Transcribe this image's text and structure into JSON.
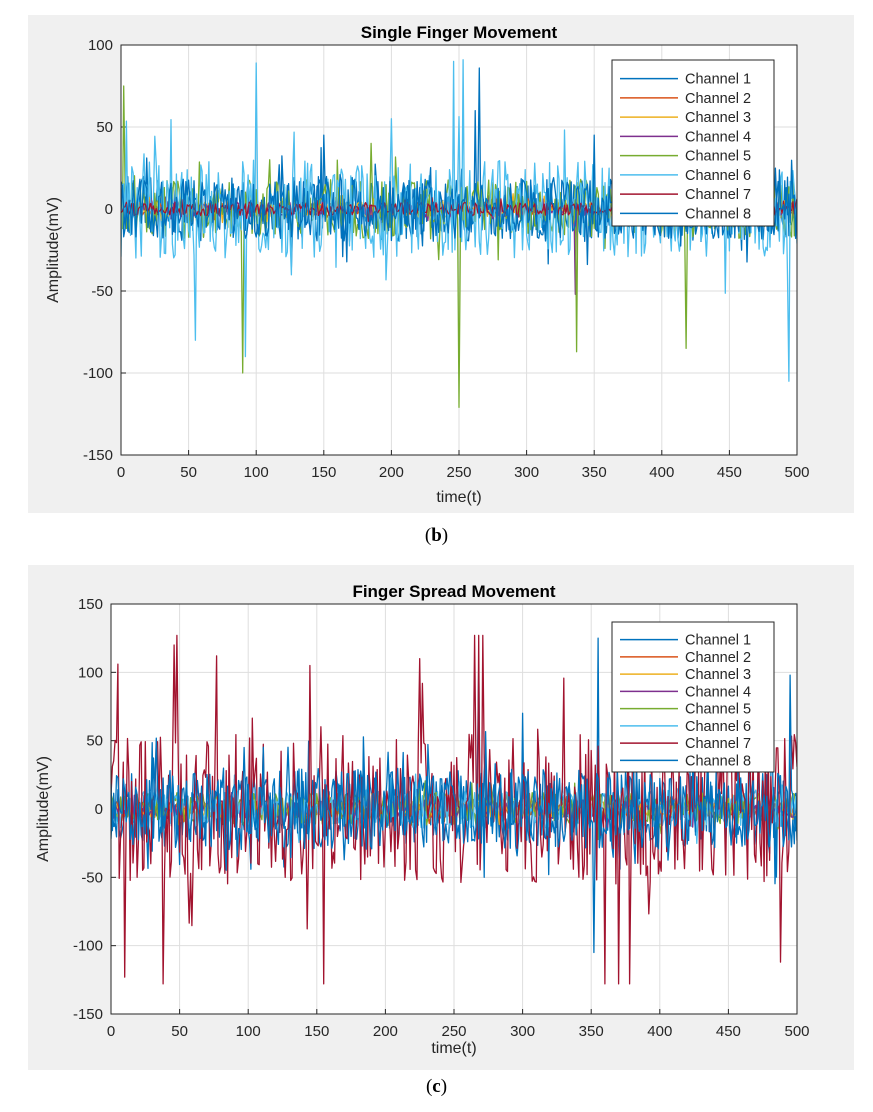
{
  "figures": [
    {
      "caption_open": "(",
      "caption_letter": "b",
      "caption_close": ")"
    },
    {
      "caption_open": "(",
      "caption_letter": "c",
      "caption_close": ")"
    }
  ],
  "chart_data": [
    {
      "type": "line",
      "title": "Single Finger Movement",
      "xlabel": "time(t)",
      "ylabel": "Amplitude(mV)",
      "xlim": [
        0,
        500
      ],
      "ylim": [
        -150,
        100
      ],
      "xticks": [
        0,
        50,
        100,
        150,
        200,
        250,
        300,
        350,
        400,
        450,
        500
      ],
      "yticks": [
        -150,
        -100,
        -50,
        0,
        50,
        100
      ],
      "grid": true,
      "legend_position": "top-right",
      "series": [
        {
          "name": "Channel 1",
          "color": "#0072bd",
          "amplitude": 20,
          "seed": 11,
          "spikes": [
            [
              265,
              86
            ],
            [
              262,
              60
            ],
            [
              150,
              45
            ]
          ]
        },
        {
          "name": "Channel 2",
          "color": "#d95319",
          "amplitude": 4,
          "seed": 12,
          "spikes": []
        },
        {
          "name": "Channel 3",
          "color": "#edb120",
          "amplitude": 5,
          "seed": 13,
          "spikes": []
        },
        {
          "name": "Channel 4",
          "color": "#7e2f8e",
          "amplitude": 5,
          "seed": 14,
          "spikes": [
            [
              336,
              -52
            ]
          ]
        },
        {
          "name": "Channel 5",
          "color": "#77ac30",
          "amplitude": 18,
          "seed": 15,
          "spikes": [
            [
              250,
              -121
            ],
            [
              90,
              -100
            ],
            [
              2,
              75
            ],
            [
              337,
              -87
            ],
            [
              418,
              -85
            ],
            [
              185,
              40
            ],
            [
              110,
              30
            ]
          ]
        },
        {
          "name": "Channel 6",
          "color": "#4dbeee",
          "amplitude": 30,
          "seed": 16,
          "spikes": [
            [
              100,
              89
            ],
            [
              246,
              90
            ],
            [
              253,
              91
            ],
            [
              494,
              -105
            ],
            [
              55,
              -80
            ],
            [
              92,
              -90
            ],
            [
              200,
              55
            ]
          ]
        },
        {
          "name": "Channel 7",
          "color": "#a2142f",
          "amplitude": 4,
          "seed": 17,
          "spikes": []
        },
        {
          "name": "Channel 8",
          "color": "#0072bd",
          "amplitude": 18,
          "seed": 18,
          "spikes": [
            [
              350,
              45
            ],
            [
              470,
              40
            ]
          ]
        }
      ]
    },
    {
      "type": "line",
      "title": "Finger Spread Movement",
      "xlabel": "time(t)",
      "ylabel": "Amplitude(mV)",
      "xlim": [
        0,
        500
      ],
      "ylim": [
        -150,
        150
      ],
      "xticks": [
        0,
        50,
        100,
        150,
        200,
        250,
        300,
        350,
        400,
        450,
        500
      ],
      "yticks": [
        -150,
        -100,
        -50,
        0,
        50,
        100,
        150
      ],
      "grid": true,
      "legend_position": "top-right",
      "series": [
        {
          "name": "Channel 1",
          "color": "#0072bd",
          "amplitude": 28,
          "seed": 21,
          "spikes": [
            [
              268,
              105
            ],
            [
              355,
              125
            ],
            [
              300,
              70
            ]
          ]
        },
        {
          "name": "Channel 2",
          "color": "#d95319",
          "amplitude": 6,
          "seed": 22,
          "spikes": []
        },
        {
          "name": "Channel 3",
          "color": "#edb120",
          "amplitude": 6,
          "seed": 23,
          "spikes": []
        },
        {
          "name": "Channel 4",
          "color": "#7e2f8e",
          "amplitude": 7,
          "seed": 24,
          "spikes": []
        },
        {
          "name": "Channel 5",
          "color": "#77ac30",
          "amplitude": 12,
          "seed": 25,
          "spikes": []
        },
        {
          "name": "Channel 6",
          "color": "#4dbeee",
          "amplitude": 14,
          "seed": 26,
          "spikes": []
        },
        {
          "name": "Channel 7",
          "color": "#a2142f",
          "amplitude": 55,
          "seed": 27,
          "spikes": [
            [
              48,
              127
            ],
            [
              46,
              120
            ],
            [
              265,
              127
            ],
            [
              268,
              127
            ],
            [
              271,
              127
            ],
            [
              155,
              -128
            ],
            [
              38,
              -128
            ],
            [
              360,
              -128
            ],
            [
              370,
              -128
            ],
            [
              378,
              -128
            ],
            [
              10,
              -123
            ],
            [
              5,
              106
            ],
            [
              77,
              112
            ],
            [
              145,
              105
            ],
            [
              225,
              110
            ],
            [
              488,
              -112
            ]
          ]
        },
        {
          "name": "Channel 8",
          "color": "#0072bd",
          "amplitude": 30,
          "seed": 28,
          "spikes": [
            [
              352,
              -105
            ],
            [
              495,
              98
            ]
          ]
        }
      ]
    }
  ]
}
